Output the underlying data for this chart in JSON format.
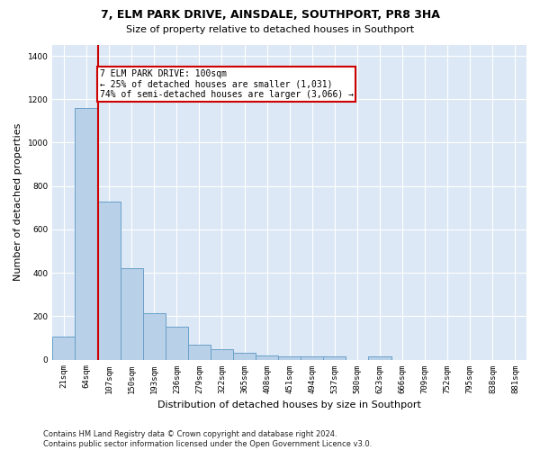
{
  "title": "7, ELM PARK DRIVE, AINSDALE, SOUTHPORT, PR8 3HA",
  "subtitle": "Size of property relative to detached houses in Southport",
  "xlabel": "Distribution of detached houses by size in Southport",
  "ylabel": "Number of detached properties",
  "footer": "Contains HM Land Registry data © Crown copyright and database right 2024.\nContains public sector information licensed under the Open Government Licence v3.0.",
  "categories": [
    "21sqm",
    "64sqm",
    "107sqm",
    "150sqm",
    "193sqm",
    "236sqm",
    "279sqm",
    "322sqm",
    "365sqm",
    "408sqm",
    "451sqm",
    "494sqm",
    "537sqm",
    "580sqm",
    "623sqm",
    "666sqm",
    "709sqm",
    "752sqm",
    "795sqm",
    "838sqm",
    "881sqm"
  ],
  "bar_values": [
    107,
    1160,
    730,
    420,
    215,
    150,
    70,
    48,
    30,
    20,
    15,
    15,
    15,
    0,
    15,
    0,
    0,
    0,
    0,
    0,
    0
  ],
  "ylim": [
    0,
    1450
  ],
  "yticks": [
    0,
    200,
    400,
    600,
    800,
    1000,
    1200,
    1400
  ],
  "bar_color": "#b8d0e8",
  "bar_edge_color": "#6aa0c8",
  "vline_color": "#cc0000",
  "vline_x_idx": 2,
  "annotation_text": "7 ELM PARK DRIVE: 100sqm\n← 25% of detached houses are smaller (1,031)\n74% of semi-detached houses are larger (3,066) →",
  "annotation_box_color": "#cc0000",
  "bg_color": "#dce8f5",
  "grid_color": "#ffffff",
  "title_fontsize": 9,
  "subtitle_fontsize": 8,
  "ylabel_fontsize": 8,
  "xlabel_fontsize": 8,
  "tick_fontsize": 6.5,
  "footer_fontsize": 6,
  "annotation_fontsize": 7
}
